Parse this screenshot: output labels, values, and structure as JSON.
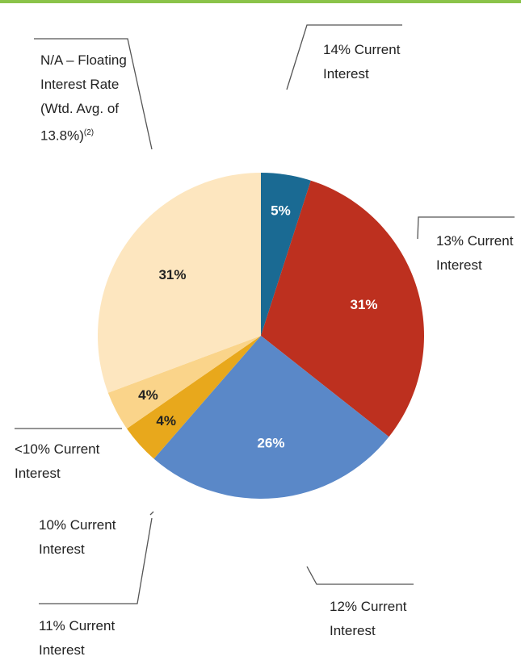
{
  "chart_data": {
    "type": "pie",
    "title": "",
    "slices": [
      {
        "label_lines": [
          "14% Current",
          "Interest"
        ],
        "value": 5,
        "value_label": "5%",
        "color": "#1a6a93"
      },
      {
        "label_lines": [
          "13% Current",
          "Interest"
        ],
        "value": 31,
        "value_label": "31%",
        "color": "#bd301f"
      },
      {
        "label_lines": [
          "12% Current",
          "Interest"
        ],
        "value": 26,
        "value_label": "26%",
        "color": "#5a88c8"
      },
      {
        "label_lines": [
          "11% Current",
          "Interest"
        ],
        "value": 4,
        "value_label": "4%",
        "color": "#e8a81c"
      },
      {
        "label_lines": [
          "<10% Current",
          "Interest"
        ],
        "value": 4,
        "value_label": "4%",
        "color": "#fad48a"
      },
      {
        "label_lines": [
          "N/A – Floating",
          "Interest Rate",
          "(Wtd. Avg. of",
          "13.8%)"
        ],
        "label_footnote": "(2)",
        "value": 31,
        "value_label": "31%",
        "color": "#fde6bf"
      }
    ],
    "extra_labels": [
      {
        "label_lines": [
          "10% Current",
          "Interest"
        ]
      }
    ],
    "value_label_colors": {
      "dark_slice": "#ffffff",
      "light_slice": "#222222"
    }
  }
}
